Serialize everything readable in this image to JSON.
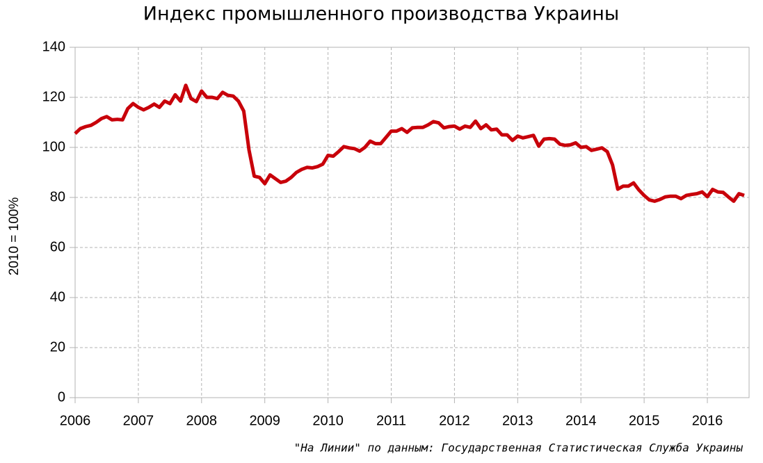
{
  "chart_data": {
    "type": "line",
    "title": "Индекс промышленного производства Украины",
    "y_label": "2010 = 100%",
    "source": "\"На Линии\" по данным: Государственная Статистическая Служба Украины",
    "xlim": [
      2006,
      2016.66
    ],
    "xticks": [
      2006,
      2007,
      2008,
      2009,
      2010,
      2011,
      2012,
      2013,
      2014,
      2015,
      2016
    ],
    "ylim": [
      0,
      140
    ],
    "yticks": [
      0,
      20,
      40,
      60,
      80,
      100,
      120,
      140
    ],
    "grid": true,
    "x": [
      2006,
      2006.083,
      2006.167,
      2006.25,
      2006.333,
      2006.417,
      2006.5,
      2006.583,
      2006.667,
      2006.75,
      2006.833,
      2006.917,
      2007,
      2007.083,
      2007.167,
      2007.25,
      2007.333,
      2007.417,
      2007.5,
      2007.583,
      2007.667,
      2007.75,
      2007.833,
      2007.917,
      2008,
      2008.083,
      2008.167,
      2008.25,
      2008.333,
      2008.417,
      2008.5,
      2008.583,
      2008.667,
      2008.75,
      2008.833,
      2008.917,
      2009,
      2009.083,
      2009.167,
      2009.25,
      2009.333,
      2009.417,
      2009.5,
      2009.583,
      2009.667,
      2009.75,
      2009.833,
      2009.917,
      2010,
      2010.083,
      2010.167,
      2010.25,
      2010.333,
      2010.417,
      2010.5,
      2010.583,
      2010.667,
      2010.75,
      2010.833,
      2010.917,
      2011,
      2011.083,
      2011.167,
      2011.25,
      2011.333,
      2011.417,
      2011.5,
      2011.583,
      2011.667,
      2011.75,
      2011.833,
      2011.917,
      2012,
      2012.083,
      2012.167,
      2012.25,
      2012.333,
      2012.417,
      2012.5,
      2012.583,
      2012.667,
      2012.75,
      2012.833,
      2012.917,
      2013,
      2013.083,
      2013.167,
      2013.25,
      2013.333,
      2013.417,
      2013.5,
      2013.583,
      2013.667,
      2013.75,
      2013.833,
      2013.917,
      2014,
      2014.083,
      2014.167,
      2014.25,
      2014.333,
      2014.417,
      2014.5,
      2014.583,
      2014.667,
      2014.75,
      2014.833,
      2014.917,
      2015,
      2015.083,
      2015.167,
      2015.25,
      2015.333,
      2015.417,
      2015.5,
      2015.583,
      2015.667,
      2015.75,
      2015.833,
      2015.917,
      2016,
      2016.083,
      2016.167,
      2016.25,
      2016.333,
      2016.417,
      2016.5,
      2016.583
    ],
    "series": [
      {
        "color": "#c8000a",
        "values": [
          105.5,
          107.5,
          108.3,
          108.8,
          110,
          111.5,
          112.3,
          111,
          111.2,
          111,
          115.5,
          117.5,
          116,
          115,
          116,
          117.3,
          116,
          118.5,
          117.5,
          121,
          118.5,
          124.8,
          119.5,
          118.3,
          122.5,
          120,
          120,
          119.5,
          122,
          120.8,
          120.5,
          118.5,
          114.5,
          99,
          88.5,
          88,
          85.5,
          89,
          87.5,
          86,
          86.5,
          88,
          90,
          91.2,
          92,
          91.8,
          92.3,
          93.3,
          96.8,
          96.5,
          98.3,
          100.3,
          99.8,
          99.5,
          98.5,
          100,
          102.5,
          101.5,
          101.5,
          104,
          106.5,
          106.5,
          107.5,
          106,
          107.8,
          108,
          108,
          109,
          110.3,
          109.8,
          107.8,
          108.3,
          108.5,
          107.3,
          108.5,
          108,
          110.5,
          107.5,
          109,
          107,
          107.3,
          105,
          105,
          102.8,
          104.5,
          103.8,
          104.3,
          104.8,
          100.5,
          103.3,
          103.5,
          103.3,
          101.3,
          100.8,
          101,
          101.8,
          100,
          100.3,
          98.8,
          99.3,
          99.8,
          98.3,
          93,
          83.3,
          84.5,
          84.5,
          85.8,
          83,
          80.8,
          79,
          78.5,
          79.2,
          80.2,
          80.5,
          80.5,
          79.5,
          80.8,
          81.2,
          81.5,
          82.2,
          80.3,
          83.2,
          82.2,
          82,
          80.2,
          78.5,
          81.5,
          80.8
        ]
      }
    ]
  }
}
